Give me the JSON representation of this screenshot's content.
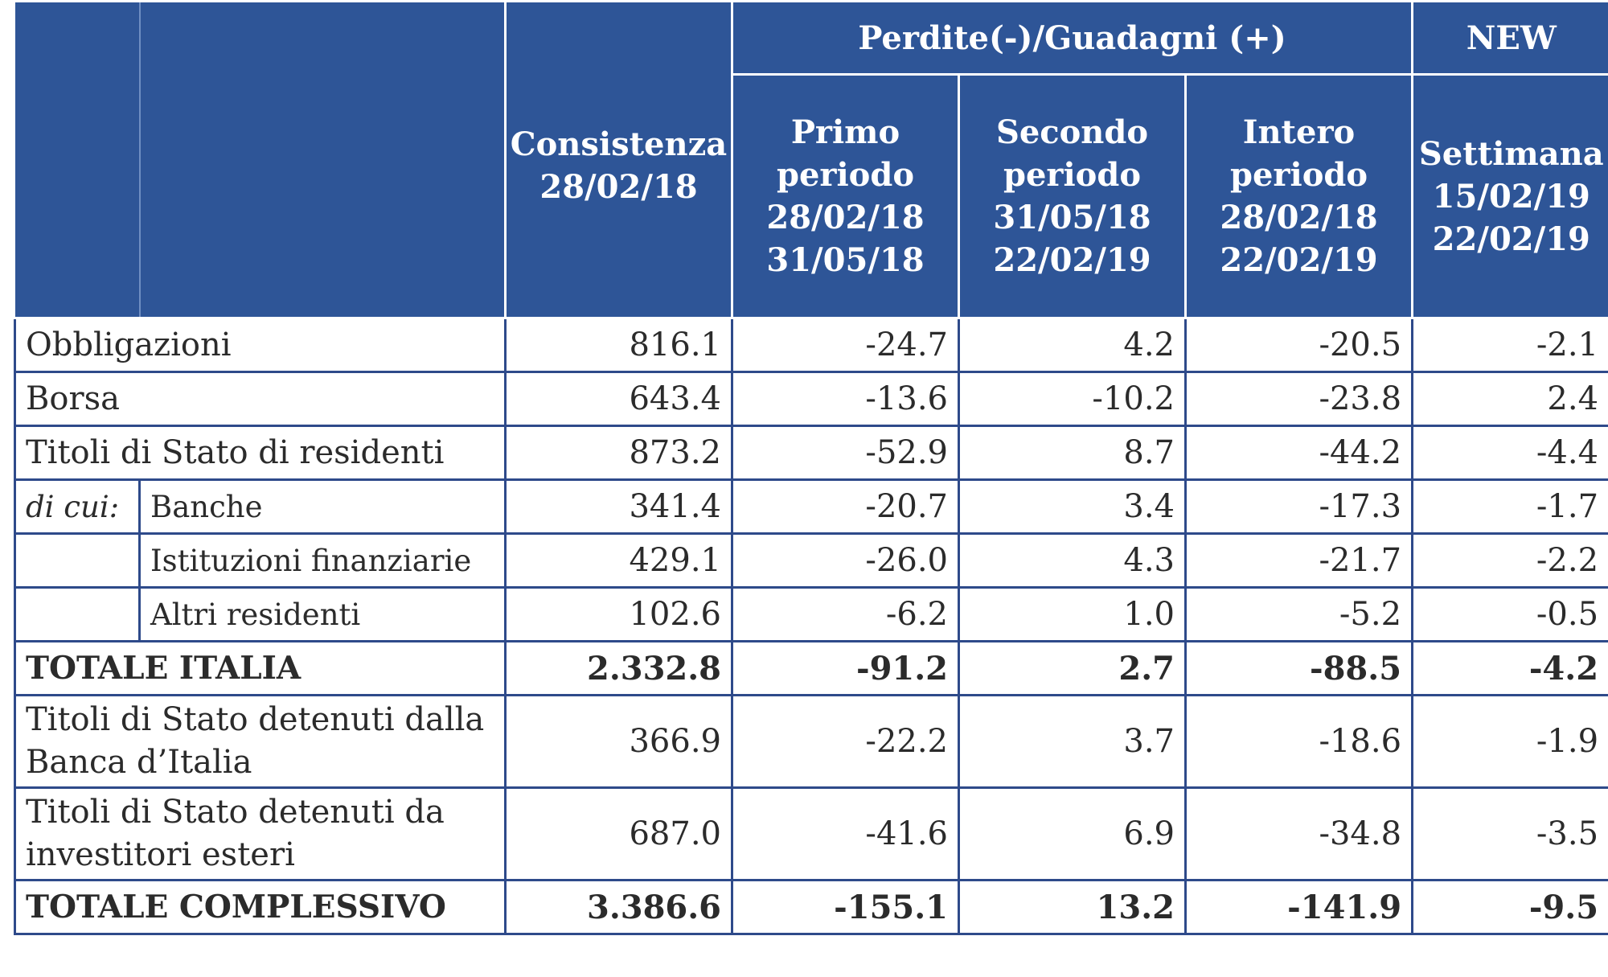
{
  "header": {
    "group_label": "Perdite(-)/Guadagni (+)",
    "new_label": "NEW",
    "consistenza": [
      "Consistenza",
      "28/02/18"
    ],
    "primo": [
      "Primo",
      "periodo",
      "28/02/18",
      "31/05/18"
    ],
    "secondo": [
      "Secondo",
      "periodo",
      "31/05/18",
      "22/02/19"
    ],
    "intero": [
      "Intero",
      "periodo",
      "28/02/18",
      "22/02/19"
    ],
    "settimana": [
      "Settimana",
      "15/02/19",
      "22/02/19"
    ]
  },
  "rows": {
    "obbligazioni": {
      "label": "Obbligazioni",
      "values": [
        "816.1",
        "-24.7",
        "4.2",
        "-20.5",
        "-2.1"
      ]
    },
    "borsa": {
      "label": "Borsa",
      "values": [
        "643.4",
        "-13.6",
        "-10.2",
        "-23.8",
        "2.4"
      ]
    },
    "titoli_residenti": {
      "label": "Titoli di Stato di residenti",
      "values": [
        "873.2",
        "-52.9",
        "8.7",
        "-44.2",
        "-4.4"
      ]
    },
    "banche": {
      "prefix": "di cui:",
      "label": "Banche",
      "values": [
        "341.4",
        "-20.7",
        "3.4",
        "-17.3",
        "-1.7"
      ]
    },
    "istituzioni": {
      "label": "Istituzioni finanziarie",
      "values": [
        "429.1",
        "-26.0",
        "4.3",
        "-21.7",
        "-2.2"
      ]
    },
    "altri": {
      "label": "Altri residenti",
      "values": [
        "102.6",
        "-6.2",
        "1.0",
        "-5.2",
        "-0.5"
      ]
    },
    "totale_italia": {
      "label": "TOTALE ITALIA",
      "values": [
        "2.332.8",
        "-91.2",
        "2.7",
        "-88.5",
        "-4.2"
      ]
    },
    "banca_italia": {
      "label_lines": [
        "Titoli di Stato detenuti dalla",
        "Banca d’Italia"
      ],
      "values": [
        "366.9",
        "-22.2",
        "3.7",
        "-18.6",
        "-1.9"
      ]
    },
    "esteri": {
      "label_lines": [
        "Titoli di Stato detenuti da",
        "investitori esteri"
      ],
      "values": [
        "687.0",
        "-41.6",
        "6.9",
        "-34.8",
        "-3.5"
      ]
    },
    "totale_complessivo": {
      "label": "TOTALE COMPLESSIVO",
      "values": [
        "3.386.6",
        "-155.1",
        "13.2",
        "-141.9",
        "-9.5"
      ]
    }
  }
}
